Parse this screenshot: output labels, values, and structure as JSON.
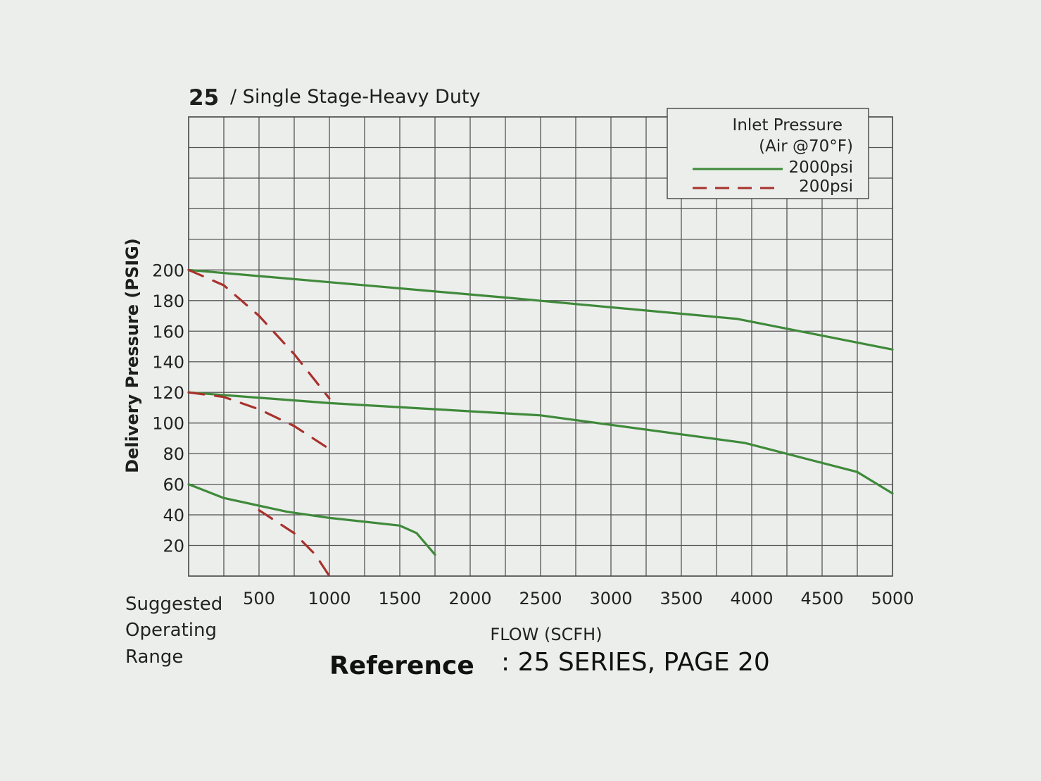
{
  "chart_data": {
    "type": "line",
    "title_number": "25",
    "title_text": "/ Single Stage-Heavy Duty",
    "ylabel": "Delivery Pressure (PSIG)",
    "xlabel": "FLOW (SCFH)",
    "y_ticks": [
      200,
      180,
      160,
      140,
      120,
      100,
      80,
      60,
      40,
      20
    ],
    "x_ticks": [
      500,
      1000,
      1500,
      2000,
      2500,
      3000,
      3500,
      4000,
      4500,
      5000
    ],
    "x_zero_label": [
      "Suggested",
      "Operating",
      "Range"
    ],
    "xlim": [
      0,
      5000
    ],
    "ylim": [
      0,
      300
    ],
    "legend": {
      "title_line1": "Inlet Pressure",
      "title_line2": "(Air @70°F)",
      "entries": [
        {
          "label": "2000psi",
          "color": "#3f8a3a",
          "style": "solid"
        },
        {
          "label": "200psi",
          "color": "#a8322c",
          "style": "dashed"
        }
      ],
      "position": "top-right"
    },
    "series": [
      {
        "legend": "2000psi",
        "style": "solid",
        "color": "#3f8a3a",
        "points": [
          [
            0,
            200
          ],
          [
            1000,
            192
          ],
          [
            2250,
            182
          ],
          [
            3900,
            168
          ],
          [
            5000,
            148
          ]
        ]
      },
      {
        "legend": "2000psi",
        "style": "solid",
        "color": "#3f8a3a",
        "points": [
          [
            0,
            120
          ],
          [
            1000,
            113
          ],
          [
            2500,
            105
          ],
          [
            3950,
            87
          ],
          [
            4750,
            68
          ],
          [
            5000,
            54
          ]
        ]
      },
      {
        "legend": "2000psi",
        "style": "solid",
        "color": "#3f8a3a",
        "points": [
          [
            0,
            60
          ],
          [
            250,
            51
          ],
          [
            700,
            42
          ],
          [
            1000,
            38
          ],
          [
            1500,
            33
          ],
          [
            1620,
            28
          ],
          [
            1750,
            14
          ]
        ]
      },
      {
        "legend": "200psi",
        "style": "dashed",
        "color": "#a8322c",
        "points": [
          [
            0,
            200
          ],
          [
            250,
            190
          ],
          [
            500,
            170
          ],
          [
            750,
            145
          ],
          [
            1000,
            116
          ]
        ]
      },
      {
        "legend": "200psi",
        "style": "dashed",
        "color": "#a8322c",
        "points": [
          [
            0,
            120
          ],
          [
            250,
            117
          ],
          [
            500,
            109
          ],
          [
            750,
            98
          ],
          [
            1000,
            83
          ]
        ]
      },
      {
        "legend": "200psi",
        "style": "dashed",
        "color": "#a8322c",
        "points": [
          [
            500,
            43
          ],
          [
            750,
            28
          ],
          [
            900,
            14
          ],
          [
            1000,
            0
          ]
        ]
      }
    ]
  },
  "reference": {
    "bold": "Reference",
    "text": ": 25 SERIES, PAGE 20"
  }
}
